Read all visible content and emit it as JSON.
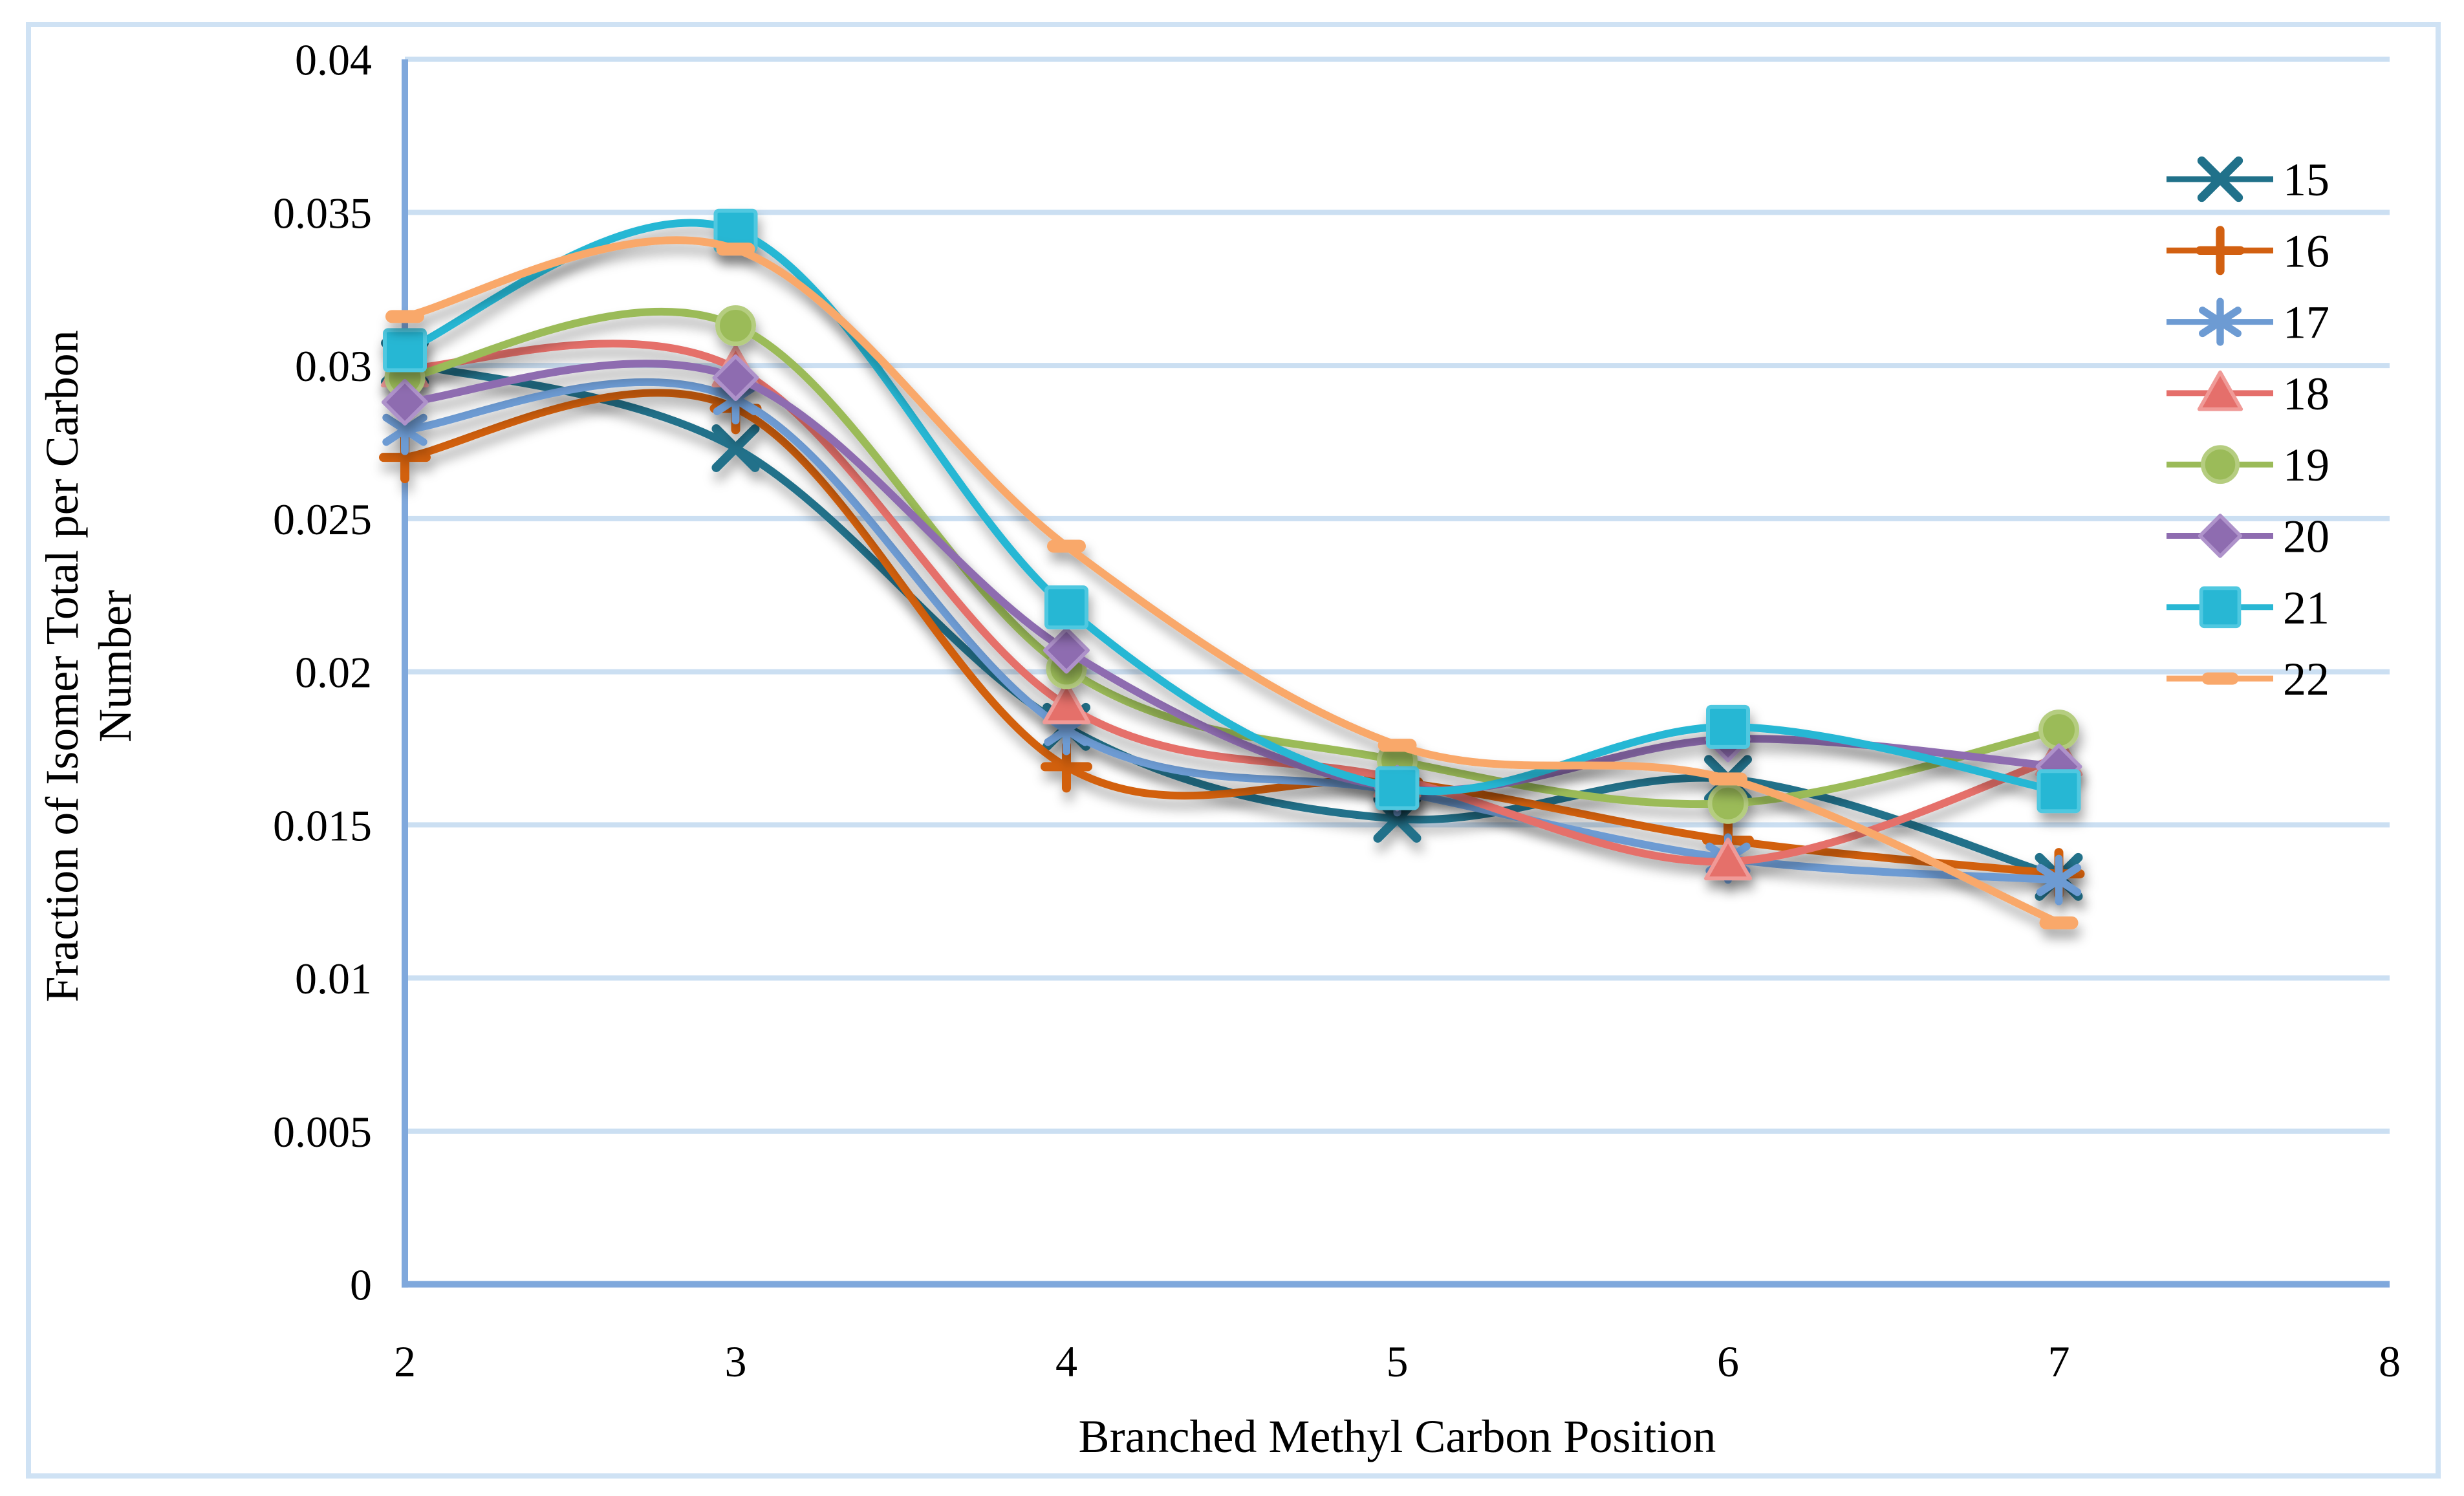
{
  "chart_data": {
    "type": "line",
    "smooth": true,
    "grid": true,
    "legend_position": "right",
    "xlabel": "Branched Methyl Carbon Position",
    "ylabel": "Fraction of Isomer Total per Carbon Number",
    "ylabel_lines": [
      "Fraction of Isomer Total per Carbon",
      "Number"
    ],
    "x": [
      2,
      3,
      4,
      5,
      6,
      7
    ],
    "xlim": [
      2,
      8
    ],
    "ylim": [
      0,
      0.04
    ],
    "xticks": [
      "2",
      "3",
      "4",
      "5",
      "6",
      "7",
      "8"
    ],
    "yticks": [
      "0",
      "0.005",
      "0.01",
      "0.015",
      "0.02",
      "0.025",
      "0.03",
      "0.035",
      "0.04"
    ],
    "series": [
      {
        "name": "15",
        "marker": "x-marker",
        "color": "#20718A",
        "edge": "#20718A",
        "values": [
          0.0301,
          0.0273,
          0.0182,
          0.0152,
          0.0165,
          0.0133
        ]
      },
      {
        "name": "16",
        "marker": "plus-marker",
        "color": "#D26011",
        "edge": "#D26011",
        "values": [
          0.027,
          0.0286,
          0.0169,
          0.0164,
          0.0145,
          0.0134
        ]
      },
      {
        "name": "17",
        "marker": "asterisk-marker",
        "color": "#6D9BD3",
        "edge": "#6D9BD3",
        "values": [
          0.0279,
          0.0289,
          0.0181,
          0.0161,
          0.0139,
          0.0132
        ]
      },
      {
        "name": "18",
        "marker": "triangle-marker",
        "color": "#E56F6B",
        "edge": "#F09A97",
        "values": [
          0.0299,
          0.0299,
          0.0189,
          0.0165,
          0.0138,
          0.0172
        ]
      },
      {
        "name": "19",
        "marker": "circle-marker",
        "color": "#9BBB59",
        "edge": "#B5CD80",
        "values": [
          0.0296,
          0.0313,
          0.0201,
          0.0171,
          0.0157,
          0.0181
        ]
      },
      {
        "name": "20",
        "marker": "diamond-marker",
        "color": "#8E6CB0",
        "edge": "#AE92CA",
        "values": [
          0.0288,
          0.0296,
          0.0207,
          0.0162,
          0.0178,
          0.0169
        ]
      },
      {
        "name": "21",
        "marker": "square-marker",
        "color": "#28B7D4",
        "edge": "#4FC8E0",
        "values": [
          0.0305,
          0.0344,
          0.0221,
          0.0162,
          0.0182,
          0.0161
        ]
      },
      {
        "name": "22",
        "marker": "dash-marker",
        "color": "#F9A86B",
        "edge": "#F9A86B",
        "values": [
          0.0316,
          0.0338,
          0.0241,
          0.0176,
          0.0165,
          0.0118
        ]
      }
    ]
  },
  "colors": {
    "background": "#FFFFFF",
    "frame_border": "#CFE2F4",
    "gridline": "#CBDFF2",
    "axis_line": "#7FA8DC",
    "text": "#000000"
  }
}
